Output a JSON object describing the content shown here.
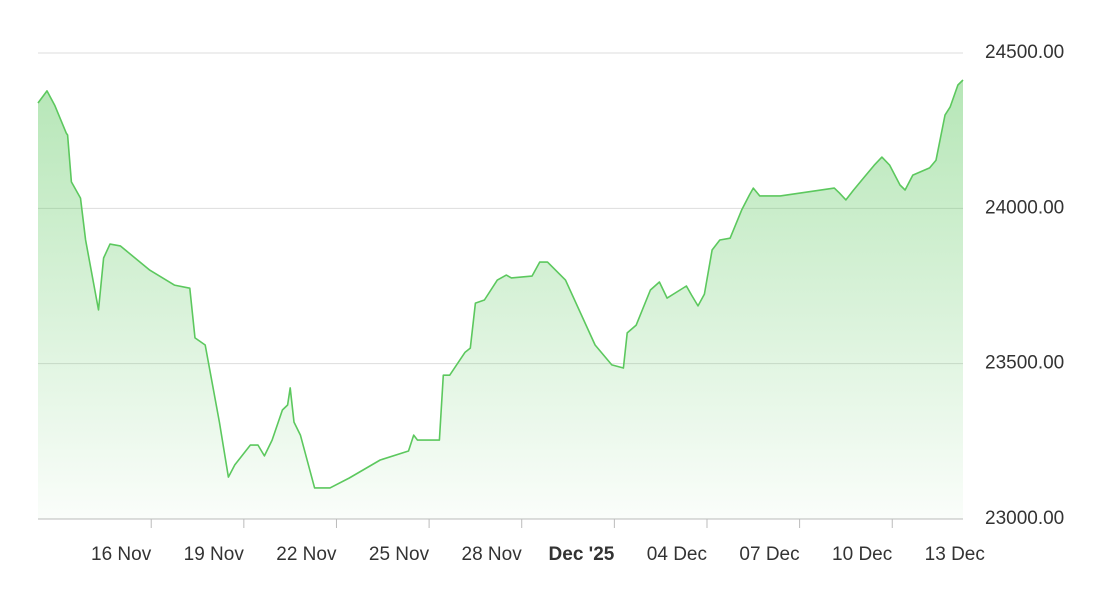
{
  "chart_data": {
    "type": "area",
    "color": "#5cc85e",
    "grid": true,
    "x": [
      "2025-11-12T08:00",
      "2025-11-12T15:00",
      "2025-11-12T21:00",
      "2025-11-13T06:00",
      "2025-11-13T07:00",
      "2025-11-13T10:00",
      "2025-11-13T17:00",
      "2025-11-13T21:00",
      "2025-11-14T07:00",
      "2025-11-14T11:00",
      "2025-11-14T16:00",
      "2025-11-15T00:00",
      "2025-11-15T23:00",
      "2025-11-16T18:00",
      "2025-11-17T06:00",
      "2025-11-17T10:00",
      "2025-11-17T18:00",
      "2025-11-18T05:00",
      "2025-11-18T12:00",
      "2025-11-18T17:00",
      "2025-11-19T05:00",
      "2025-11-19T11:00",
      "2025-11-19T16:00",
      "2025-11-19T22:00",
      "2025-11-20T06:00",
      "2025-11-20T10:00",
      "2025-11-20T12:00",
      "2025-11-20T15:00",
      "2025-11-20T20:00",
      "2025-11-21T07:00",
      "2025-11-21T19:00",
      "2025-11-22T10:00",
      "2025-11-23T10:00",
      "2025-11-24T08:00",
      "2025-11-24T12:00",
      "2025-11-24T15:00",
      "2025-11-25T08:00",
      "2025-11-25T11:00",
      "2025-11-25T16:00",
      "2025-11-26T04:00",
      "2025-11-26T08:00",
      "2025-11-26T12:00",
      "2025-11-26T19:00",
      "2025-11-27T05:00",
      "2025-11-27T12:00",
      "2025-11-27T16:00",
      "2025-11-28T08:00",
      "2025-11-28T14:00",
      "2025-11-28T20:00",
      "2025-11-29T10:00",
      "2025-11-30T09:00",
      "2025-11-30T22:00",
      "2025-12-01T07:00",
      "2025-12-01T10:00",
      "2025-12-01T17:00",
      "2025-12-02T04:00",
      "2025-12-02T11:00",
      "2025-12-02T17:00",
      "2025-12-03T03:00",
      "2025-12-03T08:00",
      "2025-12-03T12:00",
      "2025-12-03T17:00",
      "2025-12-03T22:00",
      "2025-12-04T04:00",
      "2025-12-04T10:00",
      "2025-12-04T18:00",
      "2025-12-05T03:00",
      "2025-12-05T09:00",
      "2025-12-05T12:00",
      "2025-12-05T17:00",
      "2025-12-06T09:00",
      "2025-12-08T03:00",
      "2025-12-08T07:00",
      "2025-12-08T12:00",
      "2025-12-08T18:00",
      "2025-12-09T03:00",
      "2025-12-09T10:00",
      "2025-12-09T16:00",
      "2025-12-09T22:00",
      "2025-12-10T06:00",
      "2025-12-10T10:00",
      "2025-12-10T16:00",
      "2025-12-11T05:00",
      "2025-12-11T10:00",
      "2025-12-11T17:00",
      "2025-12-11T21:00",
      "2025-12-12T03:00",
      "2025-12-12T07:00"
    ],
    "values": [
      24339,
      24378,
      24332,
      24242,
      24236,
      24085,
      24033,
      23898,
      23673,
      23840,
      23885,
      23879,
      23801,
      23753,
      23743,
      23583,
      23560,
      23312,
      23135,
      23174,
      23238,
      23238,
      23203,
      23254,
      23351,
      23367,
      23422,
      23312,
      23270,
      23100,
      23100,
      23132,
      23190,
      23219,
      23270,
      23254,
      23254,
      23463,
      23463,
      23537,
      23550,
      23695,
      23705,
      23769,
      23785,
      23776,
      23782,
      23827,
      23827,
      23769,
      23560,
      23496,
      23486,
      23599,
      23624,
      23737,
      23763,
      23711,
      23737,
      23750,
      23721,
      23686,
      23724,
      23866,
      23898,
      23904,
      23995,
      24043,
      24065,
      24040,
      24040,
      24065,
      24049,
      24027,
      24059,
      24104,
      24139,
      24165,
      24139,
      24075,
      24059,
      24107,
      24130,
      24155,
      24300,
      24326,
      24397,
      24413
    ],
    "xlim": [
      "2025-11-12T08:00",
      "2025-12-12T07:00"
    ],
    "xticks": [
      {
        "value": "2025-11-16T00:00",
        "label": "16 Nov"
      },
      {
        "value": "2025-11-19T00:00",
        "label": "19 Nov"
      },
      {
        "value": "2025-11-22T00:00",
        "label": "22 Nov"
      },
      {
        "value": "2025-11-25T00:00",
        "label": "25 Nov"
      },
      {
        "value": "2025-11-28T00:00",
        "label": "28 Nov"
      },
      {
        "value": "2025-12-01T00:00",
        "label": "Dec '25",
        "bold": true
      },
      {
        "value": "2025-12-04T00:00",
        "label": "04 Dec"
      },
      {
        "value": "2025-12-07T00:00",
        "label": "07 Dec"
      },
      {
        "value": "2025-12-10T00:00",
        "label": "10 Dec"
      },
      {
        "value": "2025-12-13T00:00",
        "label": "13 Dec"
      }
    ],
    "ylim": [
      23000,
      24500
    ],
    "yticks": [
      {
        "value": 23000,
        "label": "23000.00"
      },
      {
        "value": 23500,
        "label": "23500.00"
      },
      {
        "value": 24000,
        "label": "24000.00"
      },
      {
        "value": 24500,
        "label": "24500.00"
      }
    ]
  }
}
